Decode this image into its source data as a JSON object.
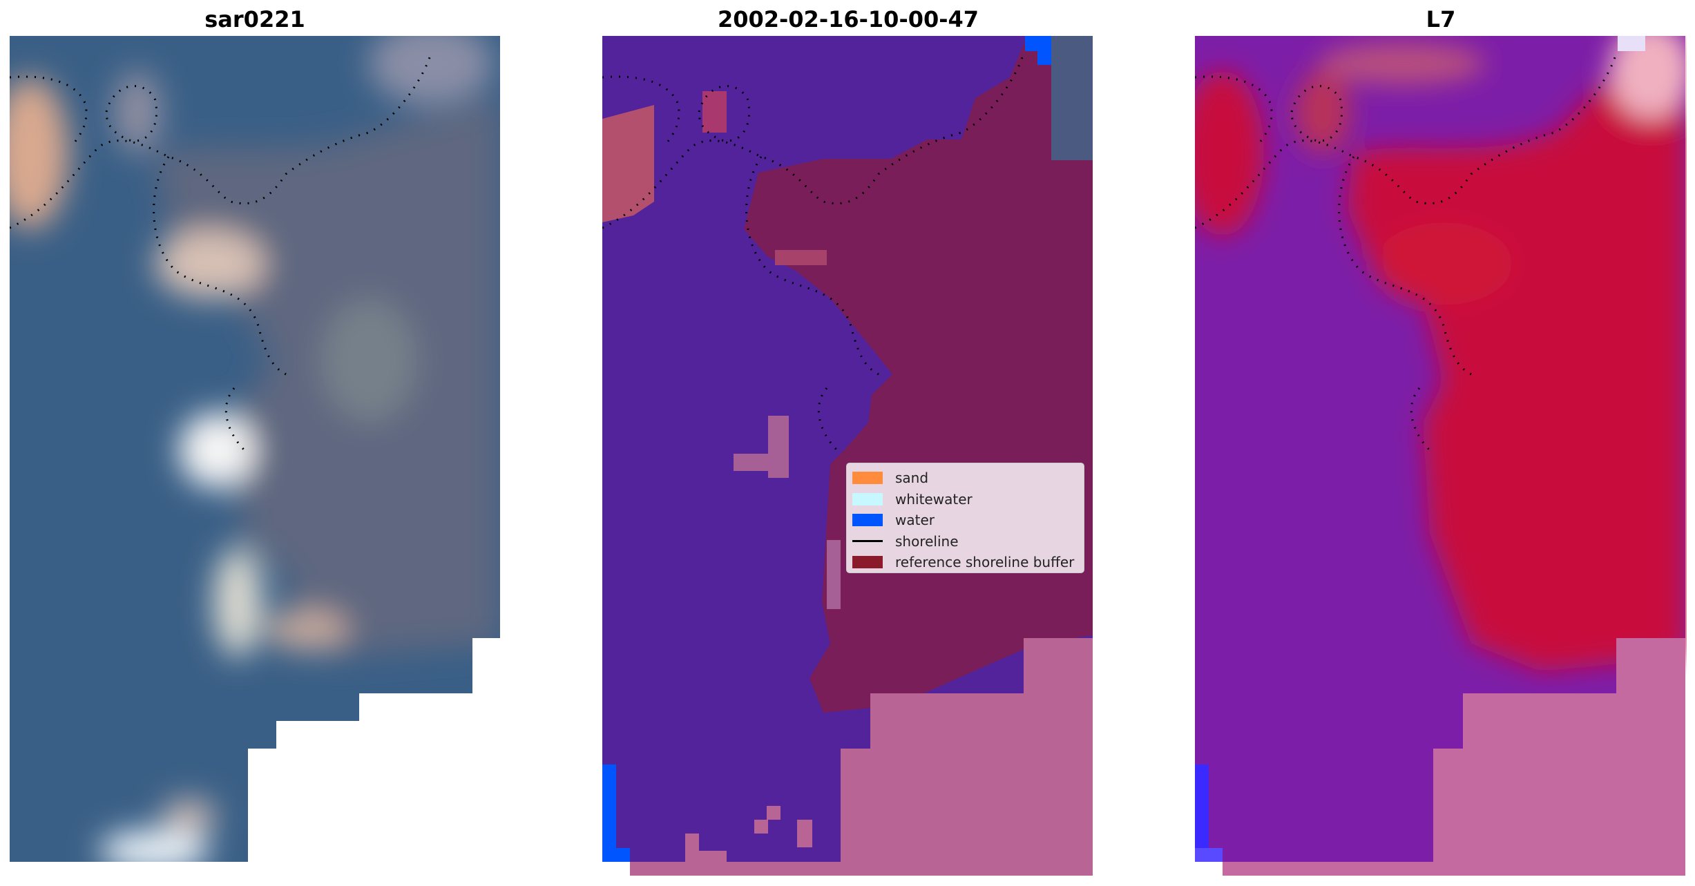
{
  "panels": [
    {
      "title": "sar0221"
    },
    {
      "title": "2002-02-16-10-00-47"
    },
    {
      "title": "L7"
    }
  ],
  "legend": {
    "items": [
      {
        "label": "sand",
        "color": "#ff8c3c",
        "kind": "patch"
      },
      {
        "label": "whitewater",
        "color": "#c8f8ff",
        "kind": "patch"
      },
      {
        "label": "water",
        "color": "#0055ff",
        "kind": "patch"
      },
      {
        "label": "shoreline",
        "color": "#000000",
        "kind": "line"
      },
      {
        "label": "reference shoreline buffer",
        "color": "#8b1a2a",
        "kind": "patch"
      }
    ]
  },
  "colors": {
    "rgb_water": "#3a5f86",
    "rgb_land": "#5c6a85",
    "classified_water": "#52239a",
    "classified_land": "#7a1e5a",
    "classified_pink": "#b86494",
    "classified_blue": "#0055ff",
    "index_water": "#7d1ea8",
    "index_land": "#c8103c",
    "index_pink": "#c46aa0"
  }
}
